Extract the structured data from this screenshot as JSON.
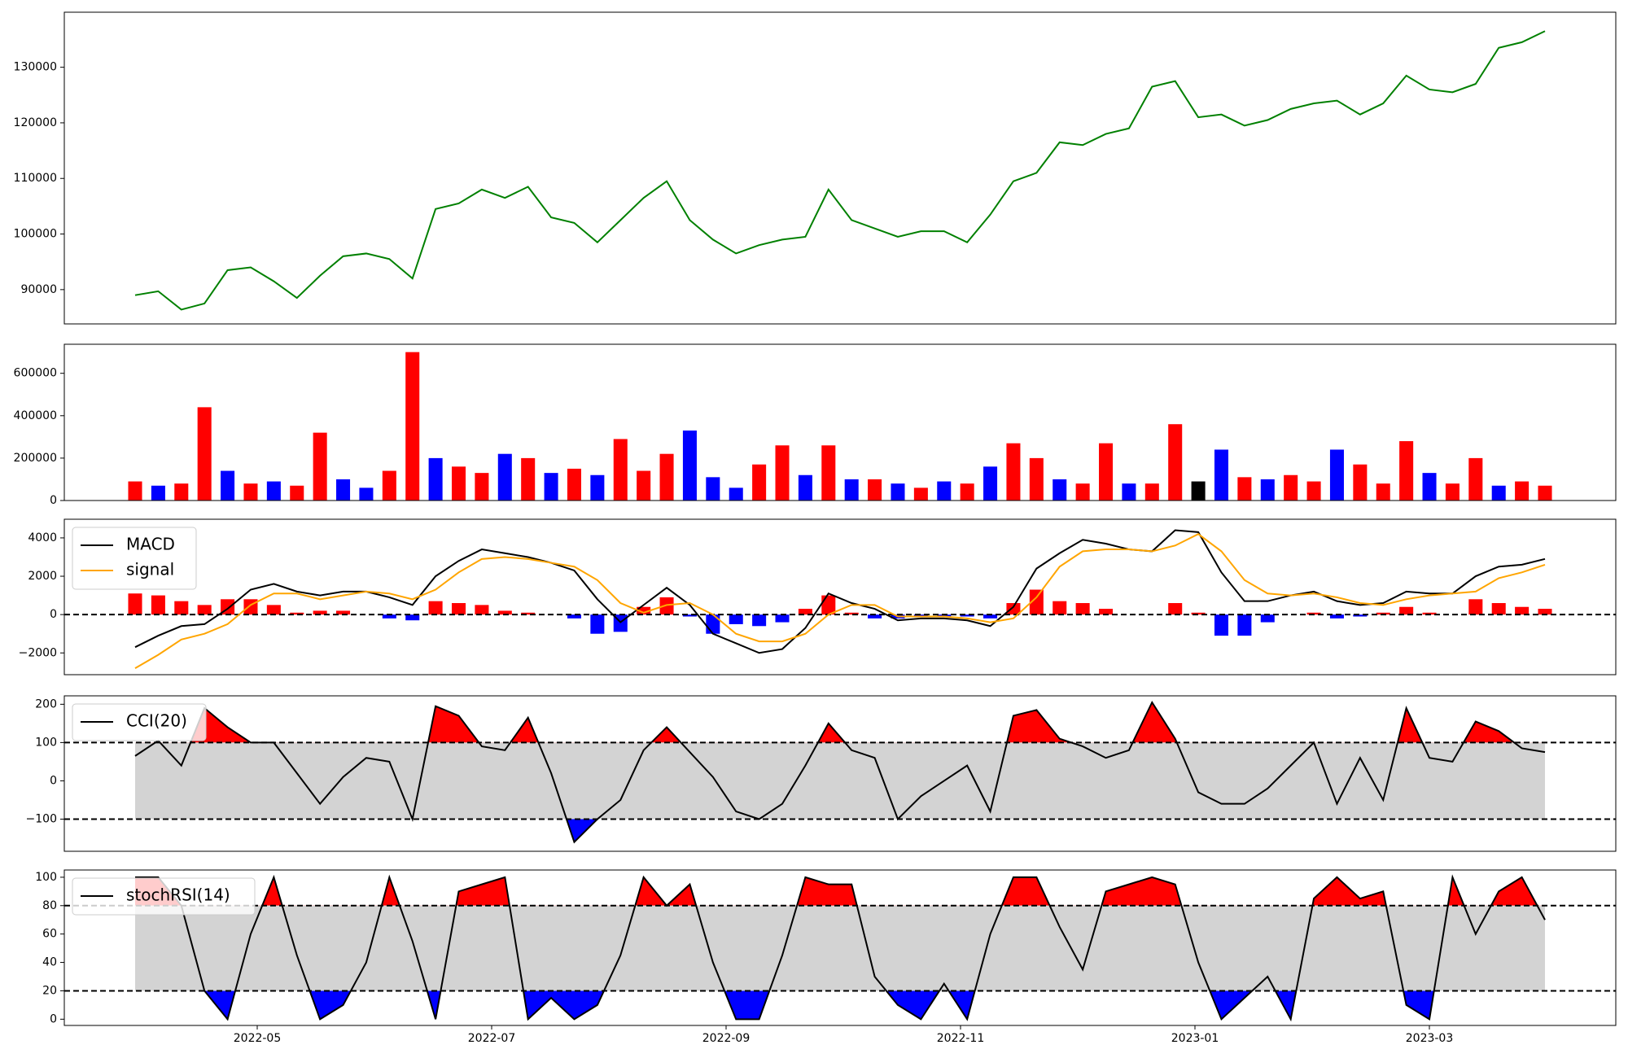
{
  "chart_data": [
    {
      "type": "line",
      "color": "#008000",
      "ylim": [
        83830,
        139900
      ],
      "yticks": [
        90000,
        100000,
        110000,
        120000,
        130000
      ],
      "values": [
        89000,
        89700,
        86400,
        87500,
        93500,
        94000,
        91500,
        88500,
        92500,
        96000,
        96500,
        95500,
        92000,
        104500,
        105500,
        108000,
        106500,
        108500,
        103000,
        102000,
        98500,
        102500,
        106500,
        109500,
        102500,
        99000,
        96500,
        98000,
        99000,
        99500,
        108000,
        102500,
        101000,
        99500,
        100500,
        100500,
        98500,
        103500,
        109500,
        111000,
        116500,
        116000,
        118000,
        119000,
        126500,
        127500,
        121000,
        121500,
        119500,
        120500,
        122500,
        123500,
        124000,
        121500,
        123500,
        128500,
        126000,
        125500,
        127000,
        133500,
        134500,
        136500
      ]
    },
    {
      "type": "bar",
      "ylim": [
        0,
        737000
      ],
      "yticks": [
        0,
        200000,
        400000,
        600000
      ],
      "values": [
        90000,
        70000,
        80000,
        440000,
        140000,
        80000,
        90000,
        70000,
        320000,
        100000,
        60000,
        140000,
        700000,
        200000,
        160000,
        130000,
        220000,
        200000,
        130000,
        150000,
        120000,
        290000,
        140000,
        220000,
        330000,
        110000,
        60000,
        170000,
        260000,
        120000,
        260000,
        100000,
        100000,
        80000,
        60000,
        90000,
        80000,
        160000,
        270000,
        200000,
        100000,
        80000,
        270000,
        80000,
        80000,
        360000,
        90000,
        240000,
        110000,
        100000,
        120000,
        90000,
        240000,
        170000,
        80000,
        280000,
        130000,
        80000,
        200000,
        70000,
        90000,
        70000
      ],
      "colors": [
        "red",
        "blue",
        "red",
        "red",
        "blue",
        "red",
        "blue",
        "red",
        "red",
        "blue",
        "blue",
        "red",
        "red",
        "blue",
        "red",
        "red",
        "blue",
        "red",
        "blue",
        "red",
        "blue",
        "red",
        "red",
        "red",
        "blue",
        "blue",
        "blue",
        "red",
        "red",
        "blue",
        "red",
        "blue",
        "red",
        "blue",
        "red",
        "blue",
        "red",
        "blue",
        "red",
        "red",
        "blue",
        "red",
        "red",
        "blue",
        "red",
        "red",
        "black",
        "blue",
        "red",
        "blue",
        "red",
        "red",
        "blue",
        "red",
        "red",
        "red",
        "blue",
        "red",
        "red",
        "blue",
        "red",
        "red"
      ]
    },
    {
      "type": "combo",
      "legend": "upper left",
      "ylim": [
        -3135,
        4973
      ],
      "yticks": [
        {
          "value": -2000,
          "label": "−2000"
        },
        0,
        2000,
        4000
      ],
      "series": [
        {
          "name": "MACD",
          "color": "black",
          "values": [
            -1700,
            -1100,
            -600,
            -500,
            300,
            1300,
            1600,
            1200,
            1000,
            1200,
            1200,
            900,
            500,
            2000,
            2800,
            3400,
            3200,
            3000,
            2700,
            2300,
            800,
            -400,
            500,
            1400,
            500,
            -1000,
            -1500,
            -2000,
            -1800,
            -700,
            1100,
            600,
            300,
            -300,
            -200,
            -200,
            -300,
            -600,
            400,
            2400,
            3200,
            3900,
            3700,
            3400,
            3300,
            4400,
            4300,
            2200,
            700,
            700,
            1000,
            1200,
            700,
            500,
            600,
            1200,
            1100,
            1100,
            2000,
            2500,
            2600,
            2900
          ]
        },
        {
          "name": "signal",
          "color": "orange",
          "values": [
            -2800,
            -2100,
            -1300,
            -1000,
            -500,
            500,
            1100,
            1100,
            800,
            1000,
            1200,
            1100,
            800,
            1300,
            2200,
            2900,
            3000,
            2900,
            2700,
            2500,
            1800,
            600,
            100,
            500,
            600,
            0,
            -1000,
            -1400,
            -1400,
            -1000,
            0,
            500,
            500,
            -100,
            -100,
            -100,
            -200,
            -400,
            -200,
            900,
            2500,
            3300,
            3400,
            3400,
            3300,
            3600,
            4200,
            3300,
            1800,
            1100,
            1000,
            1100,
            900,
            600,
            500,
            800,
            1000,
            1100,
            1200,
            1900,
            2200,
            2600
          ]
        }
      ],
      "histogram": [
        1100,
        1000,
        700,
        500,
        800,
        800,
        500,
        100,
        200,
        200,
        0,
        -200,
        -300,
        700,
        600,
        500,
        200,
        100,
        0,
        -200,
        -1000,
        -900,
        400,
        900,
        -100,
        -1000,
        -500,
        -600,
        -400,
        300,
        1000,
        100,
        -200,
        -200,
        -100,
        -100,
        -100,
        -200,
        600,
        1300,
        700,
        600,
        300,
        0,
        0,
        600,
        100,
        -1100,
        -1100,
        -400,
        0,
        100,
        -200,
        -100,
        100,
        400,
        100,
        0,
        800,
        600,
        400,
        300
      ],
      "histogram_colors": {
        "positive": "red",
        "negative": "blue"
      }
    },
    {
      "type": "band",
      "legend": "upper left",
      "ylim": [
        -184,
        222
      ],
      "yticks": [
        {
          "value": -100,
          "label": "−100"
        },
        0,
        100,
        200
      ],
      "thresholds": [
        100,
        -100
      ],
      "band_color": "lightgray",
      "above_color": "red",
      "below_color": "blue",
      "series": [
        {
          "name": "CCI(20)",
          "color": "black",
          "values": [
            65,
            105,
            40,
            190,
            140,
            100,
            100,
            20,
            -60,
            10,
            60,
            50,
            -100,
            195,
            170,
            90,
            80,
            165,
            20,
            -160,
            -100,
            -50,
            80,
            140,
            75,
            10,
            -80,
            -100,
            -60,
            40,
            150,
            80,
            60,
            -100,
            -40,
            0,
            40,
            -80,
            170,
            185,
            110,
            90,
            60,
            80,
            205,
            110,
            -30,
            -60,
            -60,
            -20,
            40,
            100,
            -60,
            60,
            -50,
            190,
            60,
            50,
            155,
            130,
            85,
            75
          ]
        }
      ]
    },
    {
      "type": "band",
      "legend": "upper left",
      "ylim": [
        -4.4,
        105.1
      ],
      "yticks": [
        0,
        20,
        40,
        60,
        80,
        100
      ],
      "thresholds": [
        80,
        20
      ],
      "band_color": "lightgray",
      "above_color": "red",
      "below_color": "blue",
      "series": [
        {
          "name": "stochRSI(14)",
          "color": "black",
          "values": [
            100,
            100,
            80,
            20,
            0,
            60,
            100,
            45,
            0,
            10,
            40,
            100,
            55,
            0,
            90,
            95,
            100,
            0,
            15,
            0,
            10,
            45,
            100,
            80,
            95,
            40,
            0,
            0,
            45,
            100,
            95,
            95,
            30,
            10,
            0,
            25,
            0,
            60,
            100,
            100,
            65,
            35,
            90,
            95,
            100,
            95,
            40,
            0,
            15,
            30,
            0,
            85,
            100,
            85,
            90,
            10,
            0,
            100,
            60,
            90,
            100,
            70
          ]
        }
      ],
      "xticks": [
        "2022-05",
        "2022-07",
        "2022-09",
        "2022-11",
        "2023-01",
        "2023-03"
      ]
    }
  ]
}
